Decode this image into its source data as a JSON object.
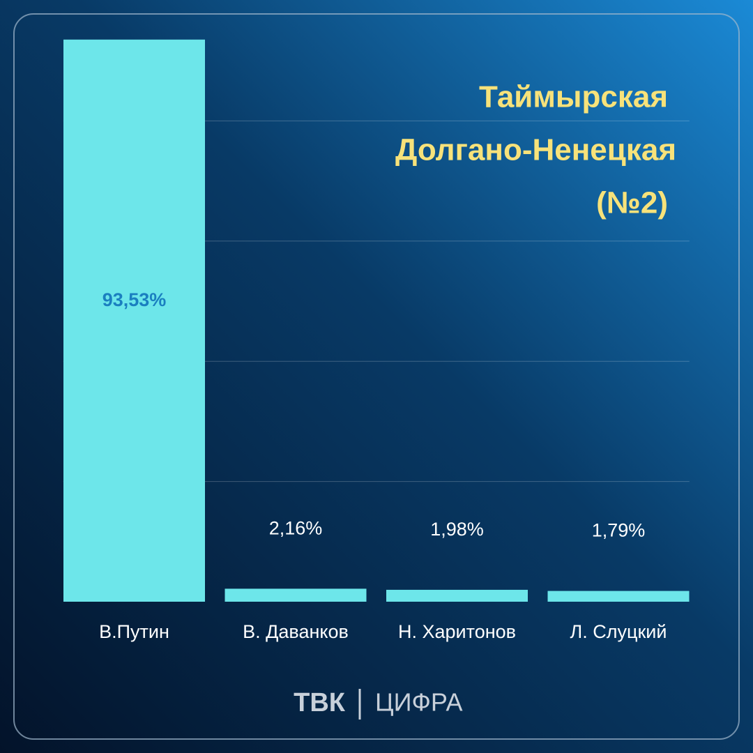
{
  "chart_data": {
    "type": "bar",
    "title": [
      "Таймырская",
      "Долгано-Ненецкая",
      "(№2)"
    ],
    "categories": [
      "В.Путин",
      "В. Даванков",
      "Н. Харитонов",
      "Л. Слуцкий"
    ],
    "values": [
      93.53,
      2.16,
      1.98,
      1.79
    ],
    "value_labels": [
      "93,53%",
      "2,16%",
      "1,98%",
      "1,79%"
    ],
    "color": "#6de6ea",
    "ylim": [
      0,
      100
    ],
    "yticks": [
      20,
      40,
      60,
      80
    ],
    "grid": true
  },
  "footer": {
    "brand": "ТВК",
    "product": "ЦИФРА"
  }
}
